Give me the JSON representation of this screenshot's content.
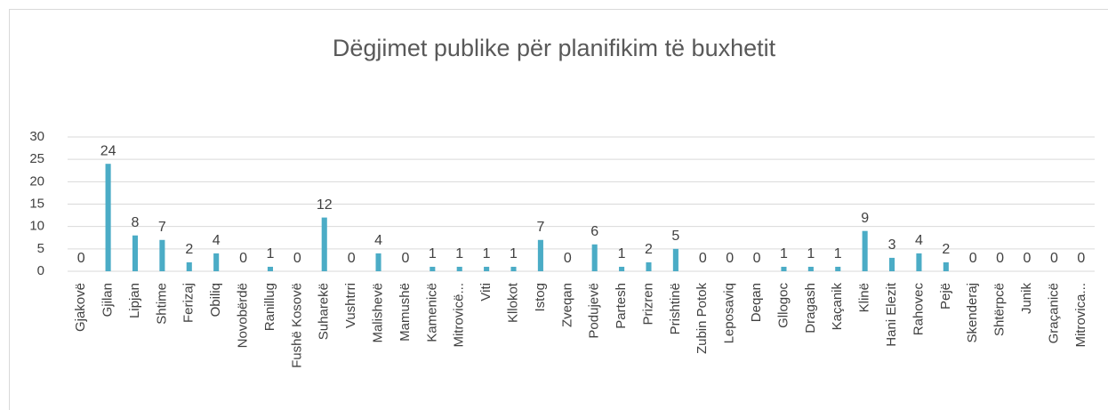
{
  "chart_data": {
    "type": "bar",
    "title": "Dëgjimet publike për planifikim të buxhetit",
    "categories": [
      "Gjakovë",
      "Gjilan",
      "Lipjan",
      "Shtime",
      "Ferizaj",
      "Obiliq",
      "Novobërdë",
      "Ranillug",
      "Fushë Kosovë",
      "Suharekë",
      "Vushtrri",
      "Malishevë",
      "Mamushë",
      "Kamenicë",
      "Mitrovicë...",
      "Viti",
      "Kllokot",
      "Istog",
      "Zveqan",
      "Podujevë",
      "Partesh",
      "Prizren",
      "Prishtinë",
      "Zubin Potok",
      "Leposaviq",
      "Deqan",
      "Gllogoc",
      "Dragash",
      "Kaçanik",
      "Klinë",
      "Hani Elezit",
      "Rahovec",
      "Pejë",
      "Skenderaj",
      "Shtërpcë",
      "Junik",
      "Graçanicë",
      "Mitrovica..."
    ],
    "values": [
      0,
      24,
      8,
      7,
      2,
      4,
      0,
      1,
      0,
      12,
      0,
      4,
      0,
      1,
      1,
      1,
      1,
      7,
      0,
      6,
      1,
      2,
      5,
      0,
      0,
      0,
      1,
      1,
      1,
      9,
      3,
      4,
      2,
      0,
      0,
      0,
      0,
      0
    ],
    "color": "#4bacc6",
    "ylim": [
      0,
      30
    ],
    "yticks": [
      0,
      5,
      10,
      15,
      20,
      25,
      30
    ],
    "grid": true
  }
}
